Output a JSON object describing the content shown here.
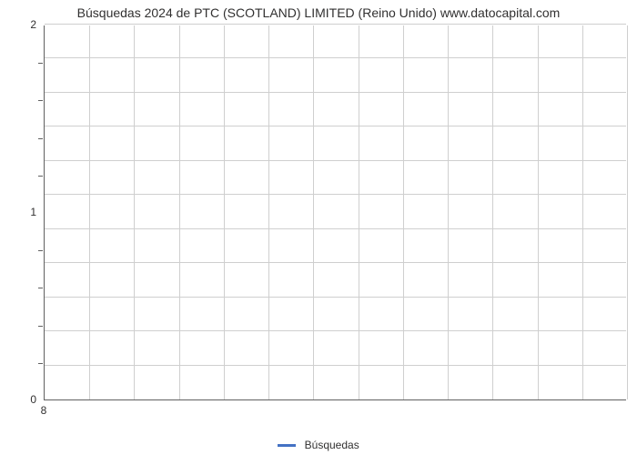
{
  "chart": {
    "type": "line",
    "title": "Búsquedas 2024 de PTC (SCOTLAND) LIMITED (Reino Unido) www.datocapital.com",
    "title_fontsize": 14,
    "title_color": "#313030",
    "background_color": "#ffffff",
    "axis_color": "#606060",
    "grid_color": "#cfcfcf",
    "tick_label_color": "#313030",
    "tick_label_fontsize": 12,
    "y": {
      "min": 0,
      "max": 2,
      "major_ticks": [
        0,
        1,
        2
      ],
      "minor_tick_count_between": 4,
      "grid_line_count": 11
    },
    "x": {
      "min": 8,
      "max": 8,
      "tick_labels": [
        "8"
      ],
      "grid_line_count": 13
    },
    "series": [],
    "legend": {
      "label": "Búsquedas",
      "color": "#4472c4",
      "swatch_width": 20,
      "swatch_height": 3
    }
  }
}
